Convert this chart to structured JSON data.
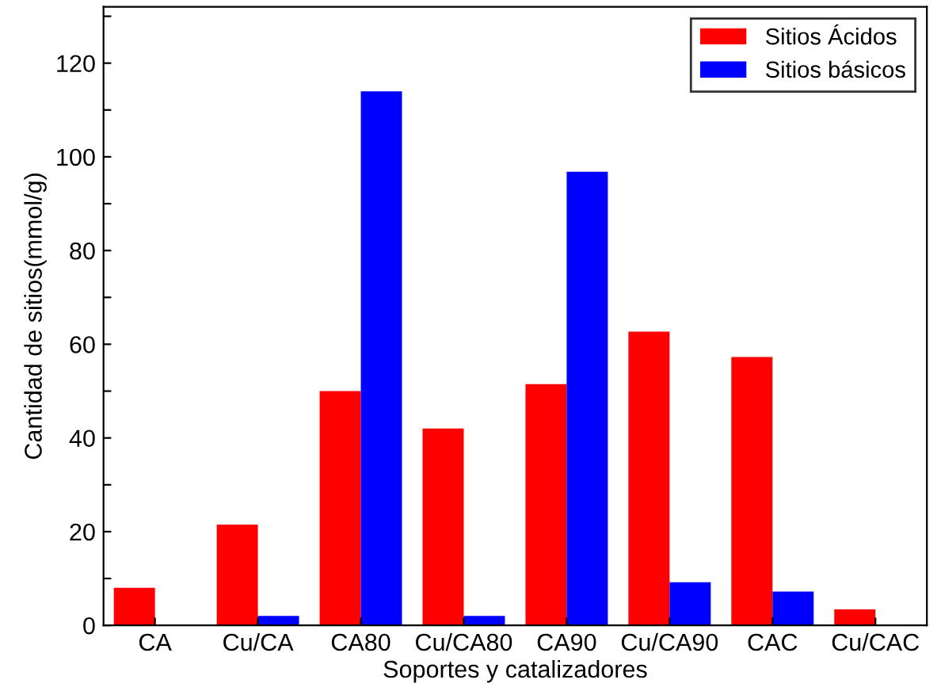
{
  "chart_data": {
    "type": "bar",
    "xlabel": "Soportes y catalizadores",
    "ylabel": "Cantidad de sitios(mmol/g)",
    "categories": [
      "CA",
      "Cu/CA",
      "CA80",
      "Cu/CA80",
      "CA90",
      "Cu/CA90",
      "CAC",
      "Cu/CAC"
    ],
    "series": [
      {
        "name": "Sitios Ácidos",
        "color": "#ff0000",
        "values": [
          8,
          21.5,
          50,
          42,
          51.5,
          62.7,
          57.3,
          3.4
        ]
      },
      {
        "name": "Sitios básicos",
        "color": "#0000ff",
        "values": [
          0,
          2,
          114,
          2,
          96.8,
          9.2,
          7.2,
          0
        ]
      }
    ],
    "ylim": [
      0,
      132
    ],
    "yticks": [
      0,
      {
        "value": 10,
        "label": null
      },
      20,
      {
        "value": 30,
        "label": null
      },
      40,
      {
        "value": 50,
        "label": null
      },
      60,
      {
        "value": 70,
        "label": null
      },
      80,
      {
        "value": 90,
        "label": null
      },
      100,
      {
        "value": 110,
        "label": null
      },
      120,
      {
        "value": 130,
        "label": null
      }
    ],
    "grid": false,
    "legend": "top right"
  }
}
